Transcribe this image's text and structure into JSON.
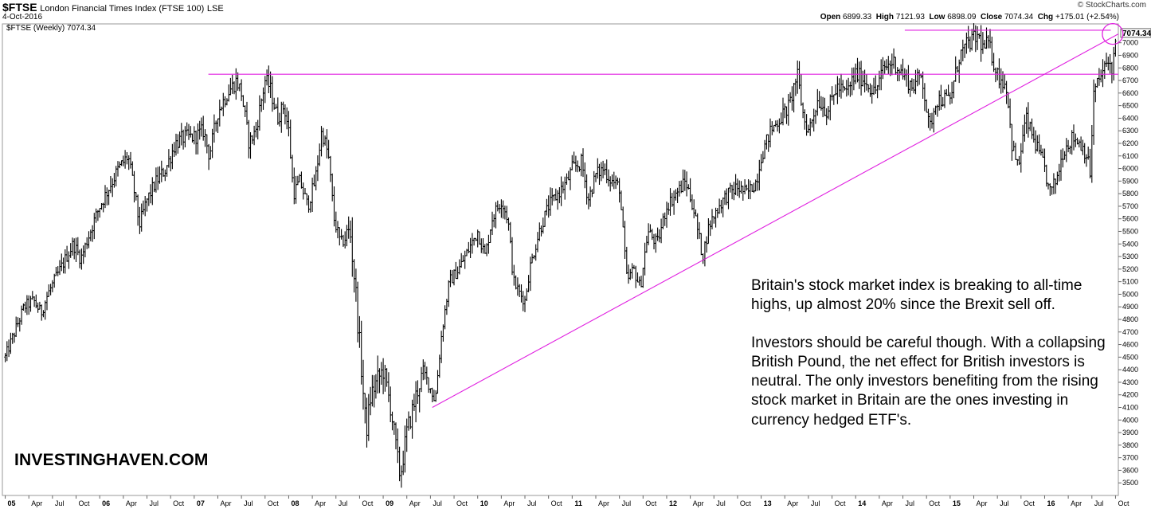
{
  "header": {
    "symbol": "$FTSE",
    "name": "London Financial Times Index (FTSE 100)",
    "exchange": "LSE",
    "date": "4-Oct-2016",
    "copyright": "© StockCharts.com",
    "ohlc": {
      "open_label": "Open",
      "open": "6899.33",
      "high_label": "High",
      "high": "7121.93",
      "low_label": "Low",
      "low": "6898.09",
      "close_label": "Close",
      "close": "7074.34",
      "chg_label": "Chg",
      "chg": "+175.01 (+2.54%)"
    },
    "legend": "$FTSE (Weekly) 7074.34"
  },
  "annotation": {
    "p1": "Britain's stock market index is breaking to all-time highs, up almost 20% since the Brexit sell off.",
    "p2": "Investors should be careful though. With a collapsing British Pound, the net effect for British investors is neutral. The only investors benefiting from the rising stock market in Britain are the ones investing in currency hedged ETF's."
  },
  "brand": "INVESTINGHAVEN.COM",
  "chart_data": {
    "type": "bar",
    "style": "ohlc-weekly",
    "color": "#000000",
    "overlay_color": "#e020e0",
    "ylim": [
      3400,
      7150
    ],
    "xlim": [
      2004.97,
      2016.78
    ],
    "y_ticks": [
      3500,
      3600,
      3700,
      3800,
      3900,
      4000,
      4100,
      4200,
      4300,
      4400,
      4500,
      4600,
      4700,
      4800,
      4900,
      5000,
      5100,
      5200,
      5300,
      5400,
      5500,
      5600,
      5700,
      5800,
      5900,
      6000,
      6100,
      6200,
      6300,
      6400,
      6500,
      6600,
      6700,
      6800,
      6900,
      7000
    ],
    "last_value_label": "7074.34",
    "x_ticks": [
      {
        "t": 2005.0,
        "label": "05"
      },
      {
        "t": 2005.25,
        "label": "Apr"
      },
      {
        "t": 2005.5,
        "label": "Jul"
      },
      {
        "t": 2005.75,
        "label": "Oct"
      },
      {
        "t": 2006.0,
        "label": "06"
      },
      {
        "t": 2006.25,
        "label": "Apr"
      },
      {
        "t": 2006.5,
        "label": "Jul"
      },
      {
        "t": 2006.75,
        "label": "Oct"
      },
      {
        "t": 2007.0,
        "label": "07"
      },
      {
        "t": 2007.25,
        "label": "Apr"
      },
      {
        "t": 2007.5,
        "label": "Jul"
      },
      {
        "t": 2007.75,
        "label": "Oct"
      },
      {
        "t": 2008.0,
        "label": "08"
      },
      {
        "t": 2008.25,
        "label": "Apr"
      },
      {
        "t": 2008.5,
        "label": "Jul"
      },
      {
        "t": 2008.75,
        "label": "Oct"
      },
      {
        "t": 2009.0,
        "label": "09"
      },
      {
        "t": 2009.25,
        "label": "Apr"
      },
      {
        "t": 2009.5,
        "label": "Jul"
      },
      {
        "t": 2009.75,
        "label": "Oct"
      },
      {
        "t": 2010.0,
        "label": "10"
      },
      {
        "t": 2010.25,
        "label": "Apr"
      },
      {
        "t": 2010.5,
        "label": "Jul"
      },
      {
        "t": 2010.75,
        "label": "Oct"
      },
      {
        "t": 2011.0,
        "label": "11"
      },
      {
        "t": 2011.25,
        "label": "Apr"
      },
      {
        "t": 2011.5,
        "label": "Jul"
      },
      {
        "t": 2011.75,
        "label": "Oct"
      },
      {
        "t": 2012.0,
        "label": "12"
      },
      {
        "t": 2012.25,
        "label": "Apr"
      },
      {
        "t": 2012.5,
        "label": "Jul"
      },
      {
        "t": 2012.75,
        "label": "Oct"
      },
      {
        "t": 2013.0,
        "label": "13"
      },
      {
        "t": 2013.25,
        "label": "Apr"
      },
      {
        "t": 2013.5,
        "label": "Jul"
      },
      {
        "t": 2013.75,
        "label": "Oct"
      },
      {
        "t": 2014.0,
        "label": "14"
      },
      {
        "t": 2014.25,
        "label": "Apr"
      },
      {
        "t": 2014.5,
        "label": "Jul"
      },
      {
        "t": 2014.75,
        "label": "Oct"
      },
      {
        "t": 2015.0,
        "label": "15"
      },
      {
        "t": 2015.25,
        "label": "Apr"
      },
      {
        "t": 2015.5,
        "label": "Jul"
      },
      {
        "t": 2015.75,
        "label": "Oct"
      },
      {
        "t": 2016.0,
        "label": "16"
      },
      {
        "t": 2016.25,
        "label": "Apr"
      },
      {
        "t": 2016.5,
        "label": "Jul"
      },
      {
        "t": 2016.75,
        "label": "Oct"
      }
    ],
    "series": [
      {
        "close_path": [
          [
            2005.0,
            4500
          ],
          [
            2005.1,
            4700
          ],
          [
            2005.2,
            4900
          ],
          [
            2005.3,
            4950
          ],
          [
            2005.38,
            4850
          ],
          [
            2005.45,
            5000
          ],
          [
            2005.55,
            5150
          ],
          [
            2005.65,
            5300
          ],
          [
            2005.72,
            5400
          ],
          [
            2005.8,
            5280
          ],
          [
            2005.9,
            5500
          ],
          [
            2006.0,
            5700
          ],
          [
            2006.1,
            5850
          ],
          [
            2006.2,
            6000
          ],
          [
            2006.3,
            6100
          ],
          [
            2006.37,
            5800
          ],
          [
            2006.42,
            5550
          ],
          [
            2006.5,
            5750
          ],
          [
            2006.6,
            5900
          ],
          [
            2006.7,
            6000
          ],
          [
            2006.8,
            6200
          ],
          [
            2006.9,
            6250
          ],
          [
            2007.0,
            6250
          ],
          [
            2007.1,
            6300
          ],
          [
            2007.16,
            6100
          ],
          [
            2007.25,
            6450
          ],
          [
            2007.35,
            6600
          ],
          [
            2007.45,
            6700
          ],
          [
            2007.5,
            6600
          ],
          [
            2007.58,
            6200
          ],
          [
            2007.65,
            6300
          ],
          [
            2007.75,
            6700
          ],
          [
            2007.8,
            6650
          ],
          [
            2007.88,
            6400
          ],
          [
            2007.95,
            6500
          ],
          [
            2008.0,
            6300
          ],
          [
            2008.05,
            5800
          ],
          [
            2008.12,
            5900
          ],
          [
            2008.2,
            5700
          ],
          [
            2008.28,
            5900
          ],
          [
            2008.35,
            6300
          ],
          [
            2008.42,
            6100
          ],
          [
            2008.48,
            5600
          ],
          [
            2008.55,
            5400
          ],
          [
            2008.65,
            5500
          ],
          [
            2008.7,
            5100
          ],
          [
            2008.78,
            4300
          ],
          [
            2008.82,
            3900
          ],
          [
            2008.87,
            4200
          ],
          [
            2008.93,
            4300
          ],
          [
            2009.0,
            4400
          ],
          [
            2009.08,
            4100
          ],
          [
            2009.15,
            3700
          ],
          [
            2009.18,
            3550
          ],
          [
            2009.25,
            3900
          ],
          [
            2009.35,
            4200
          ],
          [
            2009.42,
            4400
          ],
          [
            2009.5,
            4250
          ],
          [
            2009.55,
            4150
          ],
          [
            2009.62,
            4700
          ],
          [
            2009.7,
            5100
          ],
          [
            2009.8,
            5200
          ],
          [
            2009.9,
            5350
          ],
          [
            2010.0,
            5500
          ],
          [
            2010.08,
            5300
          ],
          [
            2010.15,
            5600
          ],
          [
            2010.25,
            5750
          ],
          [
            2010.32,
            5600
          ],
          [
            2010.38,
            5100
          ],
          [
            2010.45,
            5000
          ],
          [
            2010.5,
            4950
          ],
          [
            2010.55,
            5200
          ],
          [
            2010.65,
            5500
          ],
          [
            2010.75,
            5700
          ],
          [
            2010.85,
            5800
          ],
          [
            2010.95,
            5900
          ],
          [
            2011.0,
            6000
          ],
          [
            2011.1,
            6050
          ],
          [
            2011.17,
            5750
          ],
          [
            2011.25,
            5950
          ],
          [
            2011.33,
            6000
          ],
          [
            2011.42,
            5900
          ],
          [
            2011.5,
            5850
          ],
          [
            2011.58,
            5100
          ],
          [
            2011.65,
            5200
          ],
          [
            2011.72,
            5050
          ],
          [
            2011.8,
            5500
          ],
          [
            2011.9,
            5400
          ],
          [
            2012.0,
            5700
          ],
          [
            2012.1,
            5800
          ],
          [
            2012.2,
            5900
          ],
          [
            2012.28,
            5700
          ],
          [
            2012.38,
            5300
          ],
          [
            2012.45,
            5550
          ],
          [
            2012.55,
            5700
          ],
          [
            2012.65,
            5800
          ],
          [
            2012.75,
            5850
          ],
          [
            2012.85,
            5800
          ],
          [
            2012.95,
            5900
          ],
          [
            2013.0,
            6100
          ],
          [
            2013.1,
            6300
          ],
          [
            2013.2,
            6400
          ],
          [
            2013.3,
            6500
          ],
          [
            2013.38,
            6750
          ],
          [
            2013.45,
            6400
          ],
          [
            2013.5,
            6300
          ],
          [
            2013.6,
            6550
          ],
          [
            2013.7,
            6450
          ],
          [
            2013.8,
            6650
          ],
          [
            2013.9,
            6600
          ],
          [
            2014.0,
            6750
          ],
          [
            2014.1,
            6700
          ],
          [
            2014.2,
            6600
          ],
          [
            2014.3,
            6800
          ],
          [
            2014.4,
            6850
          ],
          [
            2014.5,
            6750
          ],
          [
            2014.6,
            6650
          ],
          [
            2014.7,
            6750
          ],
          [
            2014.78,
            6300
          ],
          [
            2014.85,
            6550
          ],
          [
            2014.92,
            6550
          ],
          [
            2015.0,
            6550
          ],
          [
            2015.1,
            6900
          ],
          [
            2015.2,
            7000
          ],
          [
            2015.3,
            7050
          ],
          [
            2015.35,
            6950
          ],
          [
            2015.4,
            7000
          ],
          [
            2015.5,
            6750
          ],
          [
            2015.6,
            6650
          ],
          [
            2015.65,
            6200
          ],
          [
            2015.72,
            6000
          ],
          [
            2015.8,
            6400
          ],
          [
            2015.9,
            6200
          ],
          [
            2016.0,
            6000
          ],
          [
            2016.05,
            5800
          ],
          [
            2016.12,
            5900
          ],
          [
            2016.2,
            6150
          ],
          [
            2016.3,
            6250
          ],
          [
            2016.38,
            6200
          ],
          [
            2016.45,
            6100
          ],
          [
            2016.48,
            5950
          ],
          [
            2016.52,
            6600
          ],
          [
            2016.6,
            6750
          ],
          [
            2016.68,
            6850
          ],
          [
            2016.72,
            6800
          ],
          [
            2016.76,
            7074
          ]
        ]
      }
    ],
    "annotations": [
      {
        "kind": "hline",
        "y": 6750,
        "x0": 2007.15,
        "x1": 2016.78
      },
      {
        "kind": "hline",
        "y": 7100,
        "x0": 2014.52,
        "x1": 2016.7
      },
      {
        "kind": "trendline",
        "x0": 2009.52,
        "y0": 4100,
        "x1": 2016.78,
        "y1": 7070
      },
      {
        "kind": "circle",
        "x": 2016.72,
        "y": 7070
      }
    ]
  }
}
